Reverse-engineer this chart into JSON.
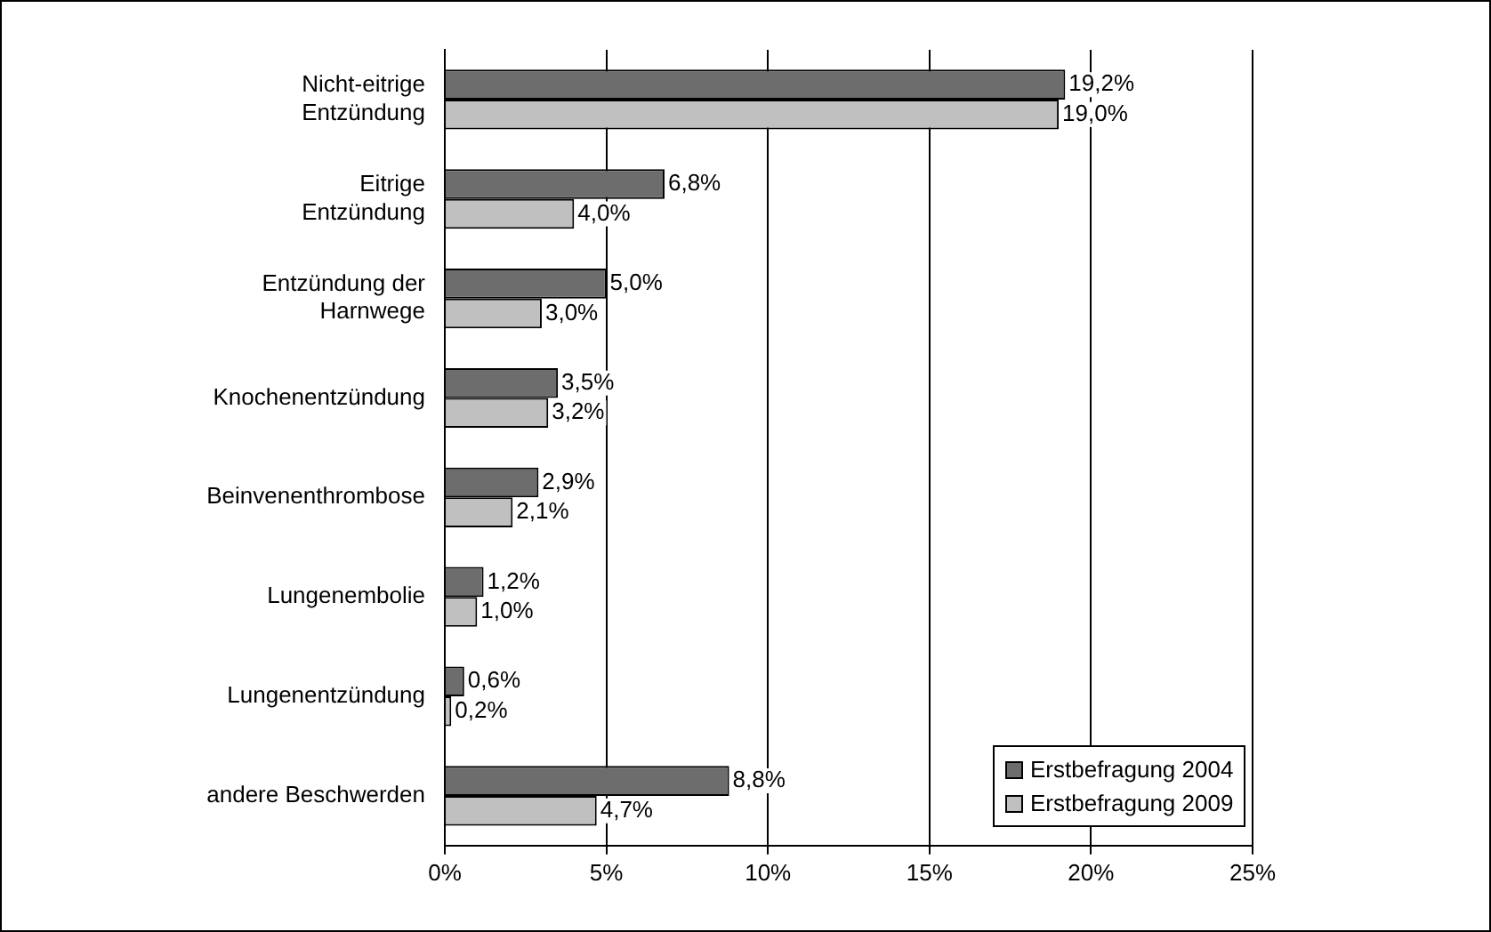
{
  "chart_data": {
    "type": "bar",
    "orientation": "horizontal",
    "categories": [
      "Nicht-eitrige\nEntzündung",
      "Eitrige\nEntzündung",
      "Entzündung der\nHarnwege",
      "Knochenentzündung",
      "Beinvenenthrombose",
      "Lungenembolie",
      "Lungenentzündung",
      "andere Beschwerden"
    ],
    "series": [
      {
        "name": "Erstbefragung 2004",
        "color": "#6d6d6d",
        "values": [
          19.2,
          6.8,
          5.0,
          3.5,
          2.9,
          1.2,
          0.6,
          8.8
        ],
        "value_labels": [
          "19,2%",
          "6,8%",
          "5,0%",
          "3,5%",
          "2,9%",
          "1,2%",
          "0,6%",
          "8,8%"
        ]
      },
      {
        "name": "Erstbefragung 2009",
        "color": "#c0c0c0",
        "values": [
          19.0,
          4.0,
          3.0,
          3.2,
          2.1,
          1.0,
          0.2,
          4.7
        ],
        "value_labels": [
          "19,0%",
          "4,0%",
          "3,0%",
          "3,2%",
          "2,1%",
          "1,0%",
          "0,2%",
          "4,7%"
        ]
      }
    ],
    "xlim": [
      0,
      25
    ],
    "xticks": [
      {
        "value": 0,
        "label": "0%"
      },
      {
        "value": 5,
        "label": "5%"
      },
      {
        "value": 10,
        "label": "10%"
      },
      {
        "value": 15,
        "label": "15%"
      },
      {
        "value": 20,
        "label": "20%"
      },
      {
        "value": 25,
        "label": "25%"
      }
    ],
    "grid": "x",
    "legend": "bottom right"
  }
}
